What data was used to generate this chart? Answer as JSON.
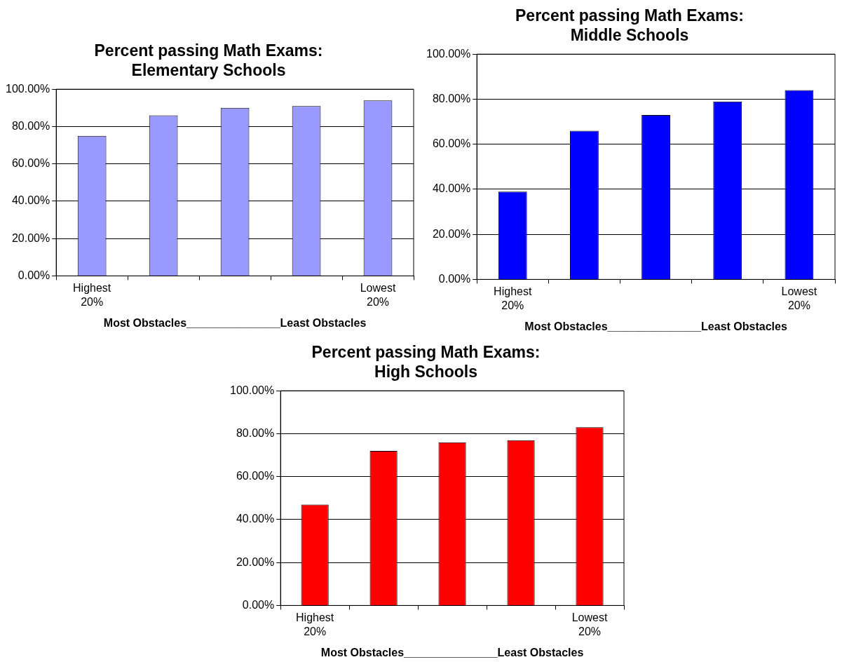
{
  "chart_data": [
    {
      "type": "bar",
      "title": [
        "Percent passing Math Exams:",
        "Elementary Schools"
      ],
      "xlabel": "Most Obstacles_______________Least Obstacles",
      "categories": [
        "Highest\n20%",
        null,
        null,
        null,
        "Lowest\n20%"
      ],
      "values": [
        75,
        86,
        90,
        91,
        94
      ],
      "color": "#9999ff",
      "ylim": [
        0,
        100
      ],
      "yticks": [
        {
          "value": 0,
          "label": "0.00%"
        },
        {
          "value": 20,
          "label": "20.00%"
        },
        {
          "value": 40,
          "label": "40.00%"
        },
        {
          "value": 60,
          "label": "60.00%"
        },
        {
          "value": 80,
          "label": "80.00%"
        },
        {
          "value": 100,
          "label": "100.00%"
        }
      ],
      "grid": "y",
      "legend": false
    },
    {
      "type": "bar",
      "title": [
        "Percent passing Math Exams:",
        "Middle Schools"
      ],
      "xlabel": "Most Obstacles_______________Least Obstacles",
      "categories": [
        "Highest\n20%",
        null,
        null,
        null,
        "Lowest\n20%"
      ],
      "values": [
        39,
        66,
        73,
        79,
        84
      ],
      "color": "#0000ff",
      "ylim": [
        0,
        100
      ],
      "yticks": [
        {
          "value": 0,
          "label": "0.00%"
        },
        {
          "value": 20,
          "label": "20.00%"
        },
        {
          "value": 40,
          "label": "40.00%"
        },
        {
          "value": 60,
          "label": "60.00%"
        },
        {
          "value": 80,
          "label": "80.00%"
        },
        {
          "value": 100,
          "label": "100.00%"
        }
      ],
      "grid": "y",
      "legend": false
    },
    {
      "type": "bar",
      "title": [
        "Percent passing Math Exams:",
        "High Schools"
      ],
      "xlabel": "Most Obstacles_______________Least Obstacles",
      "categories": [
        "Highest\n20%",
        null,
        null,
        null,
        "Lowest\n20%"
      ],
      "values": [
        47,
        72,
        76,
        77,
        83
      ],
      "color": "#ff0000",
      "ylim": [
        0,
        100
      ],
      "yticks": [
        {
          "value": 0,
          "label": "0.00%"
        },
        {
          "value": 20,
          "label": "20.00%"
        },
        {
          "value": 40,
          "label": "40.00%"
        },
        {
          "value": 60,
          "label": "60.00%"
        },
        {
          "value": 80,
          "label": "80.00%"
        },
        {
          "value": 100,
          "label": "100.00%"
        }
      ],
      "grid": "y",
      "legend": false
    }
  ]
}
